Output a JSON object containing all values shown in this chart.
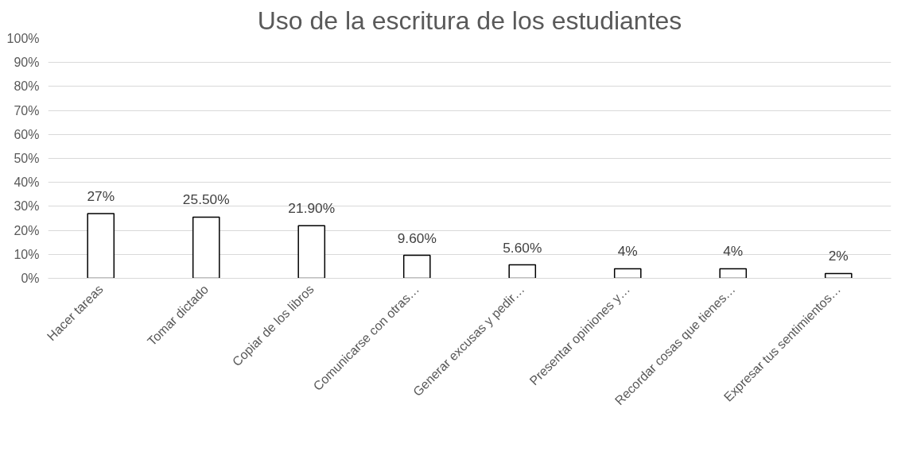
{
  "chart_data": {
    "type": "bar",
    "title": "Uso de la escritura de los estudiantes",
    "categories": [
      "Hacer tareas",
      "Tomar dictado",
      "Copiar de los libros",
      "Comunicarse con otras…",
      "Generar excusas y pedir…",
      "Presentar opiniones y…",
      "Recordar cosas que tienes…",
      "Expresar tus sentimientos…"
    ],
    "values": [
      27,
      25.5,
      21.9,
      9.6,
      5.6,
      4,
      4,
      2
    ],
    "value_labels": [
      "27%",
      "25.50%",
      "21.90%",
      "9.60%",
      "5.60%",
      "4%",
      "4%",
      "2%"
    ],
    "color": "#ffffff",
    "ylim": [
      0,
      100
    ],
    "yticks": [
      {
        "value": 0,
        "label": "0%"
      },
      {
        "value": 10,
        "label": "10%"
      },
      {
        "value": 20,
        "label": "20%"
      },
      {
        "value": 30,
        "label": "30%"
      },
      {
        "value": 40,
        "label": "40%"
      },
      {
        "value": 50,
        "label": "50%"
      },
      {
        "value": 60,
        "label": "60%"
      },
      {
        "value": 70,
        "label": "70%"
      },
      {
        "value": 80,
        "label": "80%"
      },
      {
        "value": 90,
        "label": "90%"
      },
      {
        "value": 100,
        "label": "100%"
      }
    ],
    "grid": "y"
  }
}
